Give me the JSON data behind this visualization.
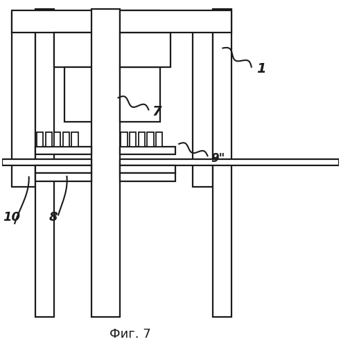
{
  "title": "Фиг. 7",
  "title_fontsize": 13,
  "bg_color": "#ffffff",
  "line_color": "#1a1a1a",
  "lw": 1.6
}
